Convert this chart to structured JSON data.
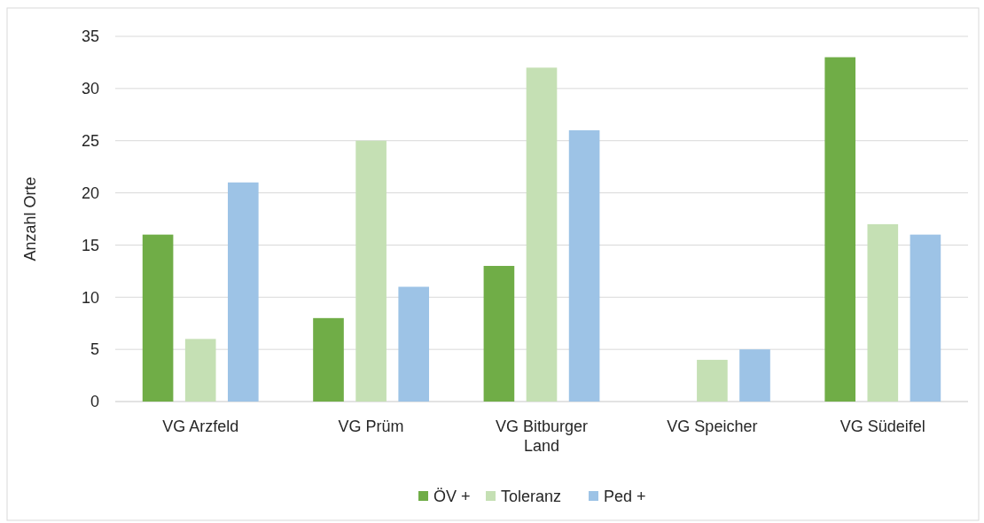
{
  "chart_data": {
    "type": "bar",
    "ylabel": "Anzahl Orte",
    "categories": [
      "VG Arzfeld",
      "VG Prüm",
      "VG Bitburger Land",
      "VG Speicher",
      "VG Südeifel"
    ],
    "series": [
      {
        "name": "ÖV +",
        "color": "#70ad47",
        "values": [
          16,
          8,
          13,
          0,
          33
        ]
      },
      {
        "name": "Toleranz",
        "color": "#c5e0b4",
        "values": [
          6,
          25,
          32,
          4,
          17
        ]
      },
      {
        "name": "Ped +",
        "color": "#9dc3e6",
        "values": [
          21,
          11,
          26,
          5,
          16
        ]
      }
    ],
    "ylim": [
      0,
      35
    ],
    "yticks": [
      0,
      5,
      10,
      15,
      20,
      25,
      30,
      35
    ],
    "grid": "y",
    "legend": "bottom"
  }
}
